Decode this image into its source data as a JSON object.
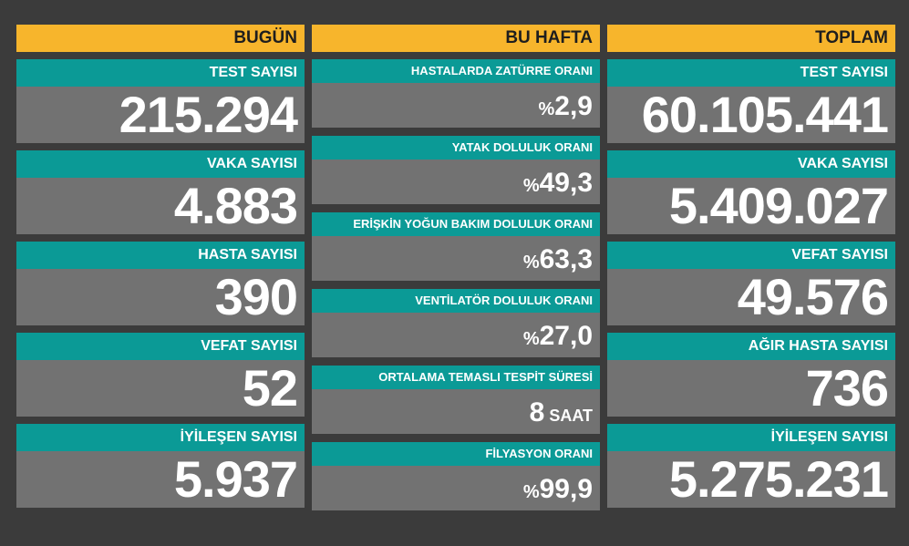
{
  "today": {
    "header": "BUGÜN",
    "items": [
      {
        "label": "TEST SAYISI",
        "value": "215.294"
      },
      {
        "label": "VAKA SAYISI",
        "value": "4.883"
      },
      {
        "label": "HASTA SAYISI",
        "value": "390"
      },
      {
        "label": "VEFAT SAYISI",
        "value": "52"
      },
      {
        "label": "İYİLEŞEN SAYISI",
        "value": "5.937"
      }
    ]
  },
  "week": {
    "header": "BU HAFTA",
    "items": [
      {
        "label": "HASTALARDA ZATÜRRE ORANI",
        "prefix": "%",
        "value": "2,9"
      },
      {
        "label": "YATAK DOLULUK ORANI",
        "prefix": "%",
        "value": "49,3"
      },
      {
        "label": "ERİŞKİN YOĞUN BAKIM DOLULUK ORANI",
        "prefix": "%",
        "value": "63,3"
      },
      {
        "label": "VENTİLATÖR DOLULUK ORANI",
        "prefix": "%",
        "value": "27,0"
      },
      {
        "label": "ORTALAMA TEMASLI TESPİT SÜRESİ",
        "value": "8",
        "unit": " SAAT"
      },
      {
        "label": "FİLYASYON ORANI",
        "prefix": "%",
        "value": "99,9"
      }
    ]
  },
  "total": {
    "header": "TOPLAM",
    "items": [
      {
        "label": "TEST SAYISI",
        "value": "60.105.441"
      },
      {
        "label": "VAKA SAYISI",
        "value": "5.409.027"
      },
      {
        "label": "VEFAT SAYISI",
        "value": "49.576"
      },
      {
        "label": "AĞIR HASTA SAYISI",
        "value": "736"
      },
      {
        "label": "İYİLEŞEN SAYISI",
        "value": "5.275.231"
      }
    ]
  },
  "colors": {
    "header": "#f7b52c",
    "label_bg": "#0b9a96",
    "value_bg": "#727272",
    "page_bg": "#3b3b3b"
  }
}
